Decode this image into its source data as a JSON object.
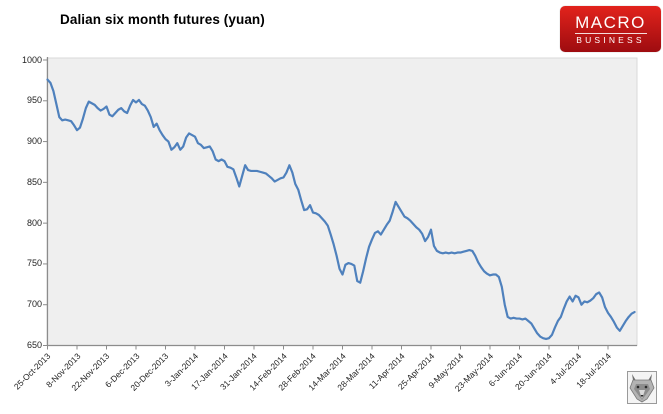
{
  "header": {
    "title": "Dalian six month futures (yuan)"
  },
  "logo": {
    "line1": "MACRO",
    "line2": "BUSINESS",
    "bg_top": "#e2231c",
    "bg_bottom": "#9e0c10",
    "text_color": "#ffffff"
  },
  "icons": {
    "wolf": "wolf-mascot-icon"
  },
  "chart_data": {
    "type": "line",
    "title": "Dalian six month futures (yuan)",
    "xlabel": "",
    "ylabel": "",
    "ylim": [
      650,
      1000
    ],
    "y_ticks": [
      1000,
      950,
      900,
      850,
      800,
      750,
      700,
      650
    ],
    "x_tick_labels": [
      "25-Oct-2013",
      "8-Nov-2013",
      "22-Nov-2013",
      "6-Dec-2013",
      "20-Dec-2013",
      "3-Jan-2014",
      "17-Jan-2014",
      "31-Jan-2014",
      "14-Feb-2014",
      "28-Feb-2014",
      "14-Mar-2014",
      "28-Mar-2014",
      "11-Apr-2014",
      "25-Apr-2014",
      "9-May-2014",
      "23-May-2014",
      "6-Jun-2014",
      "20-Jun-2014",
      "4-Jul-2014",
      "18-Jul-2014"
    ],
    "points_per_tick": 10,
    "grid": "off",
    "legend": "none",
    "plot_bg": "#efefef",
    "border_color": "#d9d9d9",
    "axis_color": "#8c8c8c",
    "series": [
      {
        "name": "Dalian six month futures (yuan)",
        "color": "#4f81bd",
        "values": [
          976,
          972,
          962,
          946,
          930,
          926,
          927,
          926,
          925,
          920,
          914,
          917,
          928,
          941,
          949,
          947,
          945,
          941,
          938,
          940,
          943,
          933,
          931,
          935,
          939,
          941,
          937,
          935,
          944,
          951,
          948,
          951,
          946,
          944,
          938,
          930,
          918,
          922,
          914,
          908,
          903,
          900,
          890,
          893,
          898,
          890,
          894,
          905,
          910,
          908,
          906,
          898,
          896,
          892,
          893,
          894,
          888,
          878,
          876,
          878,
          876,
          869,
          868,
          866,
          856,
          845,
          858,
          871,
          865,
          864,
          864,
          864,
          863,
          862,
          861,
          858,
          855,
          851,
          853,
          855,
          856,
          862,
          871,
          862,
          848,
          841,
          828,
          816,
          817,
          822,
          813,
          812,
          810,
          806,
          802,
          797,
          786,
          774,
          760,
          744,
          737,
          749,
          751,
          750,
          748,
          729,
          727,
          741,
          757,
          771,
          780,
          788,
          790,
          786,
          792,
          798,
          803,
          814,
          826,
          820,
          814,
          808,
          806,
          803,
          799,
          795,
          792,
          787,
          778,
          783,
          792,
          772,
          766,
          764,
          763,
          764,
          763,
          764,
          763,
          764,
          764,
          765,
          766,
          767,
          766,
          760,
          752,
          746,
          741,
          738,
          736,
          737,
          737,
          734,
          722,
          700,
          685,
          683,
          684,
          683,
          683,
          682,
          683,
          680,
          677,
          671,
          665,
          661,
          659,
          658,
          659,
          663,
          672,
          680,
          685,
          695,
          704,
          710,
          704,
          711,
          709,
          700,
          704,
          703,
          705,
          708,
          713,
          715,
          709,
          697,
          690,
          685,
          679,
          672,
          668,
          674,
          680,
          685,
          689,
          691
        ]
      }
    ]
  }
}
